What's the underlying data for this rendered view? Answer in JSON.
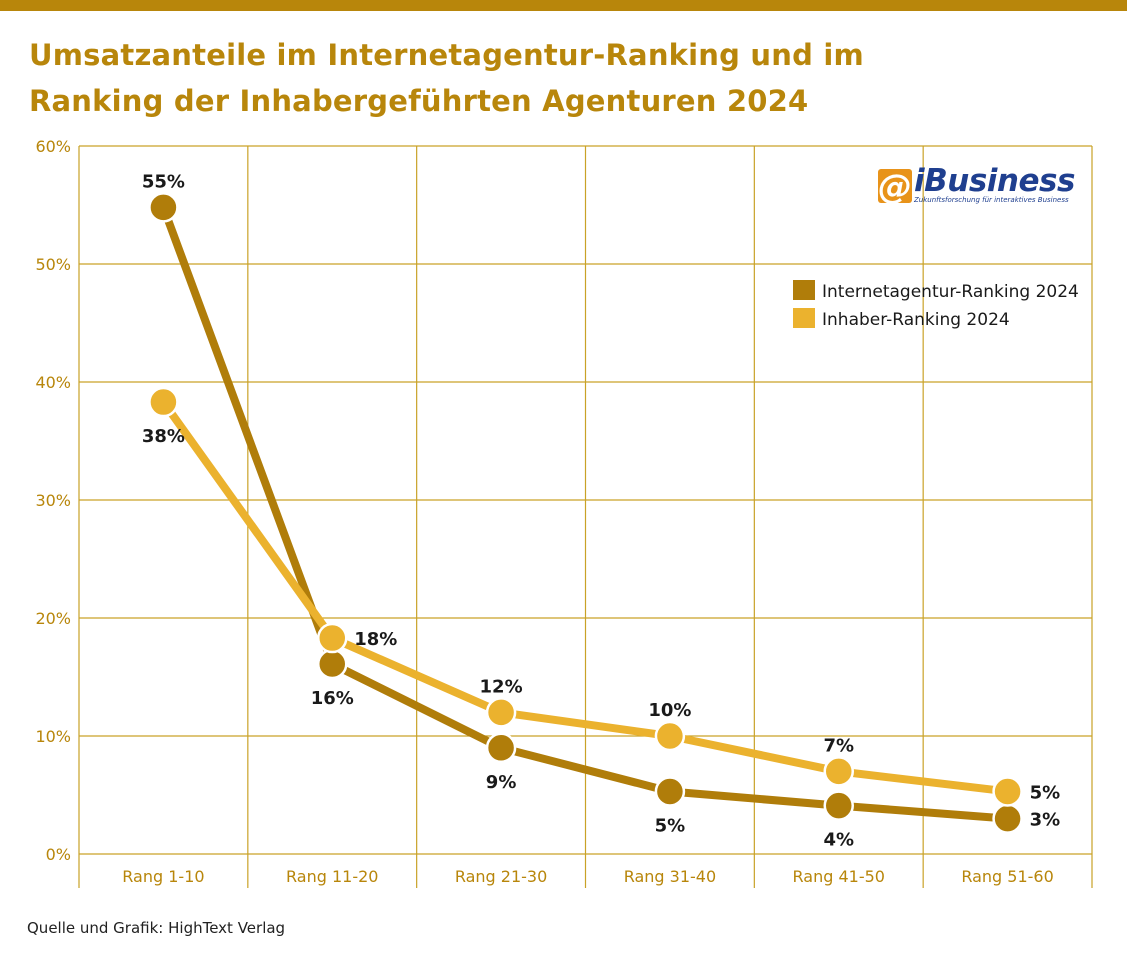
{
  "header": {
    "title_line1": "Umsatzanteile im Internetagentur-Ranking und im",
    "title_line2": "Ranking der Inhabergeführten Agenturen 2024"
  },
  "logo": {
    "at_symbol": "@",
    "wordmark": "iBusiness",
    "tagline": "Zukunftsforschung für interaktives Business"
  },
  "footer": {
    "source": "Quelle und Grafik: HighText Verlag"
  },
  "colors": {
    "accent": "#b8860b",
    "series_internet": "#b07d0a",
    "series_inhaber": "#ebb22e",
    "grid": "#c9a227",
    "axis_text": "#b8860b",
    "label_text": "#1a1a1a"
  },
  "chart_data": {
    "type": "line",
    "title": "Umsatzanteile im Internetagentur-Ranking und im Ranking der Inhabergeführten Agenturen 2024",
    "categories": [
      "Rang 1-10",
      "Rang 11-20",
      "Rang 21-30",
      "Rang 31-40",
      "Rang 41-50",
      "Rang 51-60"
    ],
    "series": [
      {
        "name": "Internetagentur-Ranking 2024",
        "values": [
          54.8,
          16.1,
          9.0,
          5.3,
          4.1,
          3.0
        ],
        "labels": [
          "55%",
          "16%",
          "9%",
          "5%",
          "4%",
          "3%"
        ],
        "label_pos": [
          "above",
          "below",
          "below",
          "below",
          "below",
          "right"
        ]
      },
      {
        "name": "Inhaber-Ranking 2024",
        "values": [
          38.3,
          18.3,
          12.0,
          10.0,
          7.0,
          5.3
        ],
        "labels": [
          "38%",
          "18%",
          "12%",
          "10%",
          "7%",
          "5%"
        ],
        "label_pos": [
          "below",
          "right",
          "above",
          "above",
          "above",
          "right"
        ]
      }
    ],
    "ylim": [
      0,
      60
    ],
    "yticks": [
      0,
      10,
      20,
      30,
      40,
      50,
      60
    ],
    "ytick_labels": [
      "0%",
      "10%",
      "20%",
      "30%",
      "40%",
      "50%",
      "60%"
    ],
    "grid": true,
    "legend": "top-right"
  }
}
